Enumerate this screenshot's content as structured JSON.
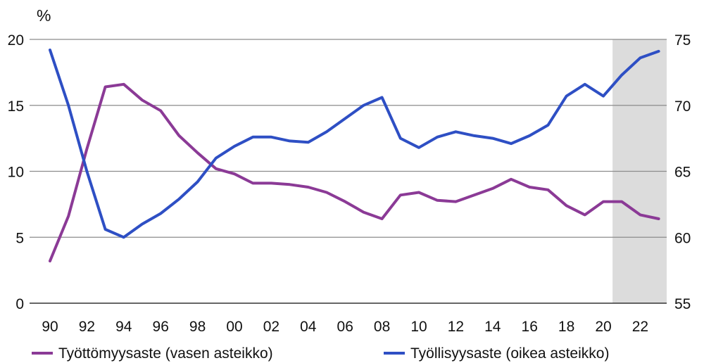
{
  "chart_data": {
    "type": "line",
    "title": "",
    "y_unit_left": "%",
    "x_categories": [
      "90",
      "91",
      "92",
      "93",
      "94",
      "95",
      "96",
      "97",
      "98",
      "99",
      "00",
      "01",
      "02",
      "03",
      "04",
      "05",
      "06",
      "07",
      "08",
      "09",
      "10",
      "11",
      "12",
      "13",
      "14",
      "15",
      "16",
      "17",
      "18",
      "19",
      "20",
      "21",
      "22",
      "23"
    ],
    "x_tick_labels": [
      "90",
      "92",
      "94",
      "96",
      "98",
      "00",
      "02",
      "04",
      "06",
      "08",
      "10",
      "12",
      "14",
      "16",
      "18",
      "20",
      "22"
    ],
    "y_left": {
      "min": 0,
      "max": 20,
      "ticks": [
        "0",
        "5",
        "10",
        "15",
        "20"
      ]
    },
    "y_right": {
      "min": 55,
      "max": 75,
      "ticks": [
        "55",
        "60",
        "65",
        "70",
        "75"
      ]
    },
    "grid": true,
    "forecast_band": {
      "from": "21",
      "to": "23"
    },
    "legend_position": "bottom",
    "series": [
      {
        "name": "Työttömyysaste (vasen asteikko)",
        "axis": "left",
        "color": "#8B3A96",
        "values": [
          3.2,
          6.6,
          11.7,
          16.4,
          16.6,
          15.4,
          14.6,
          12.7,
          11.4,
          10.2,
          9.8,
          9.1,
          9.1,
          9.0,
          8.8,
          8.4,
          7.7,
          6.9,
          6.4,
          8.2,
          8.4,
          7.8,
          7.7,
          8.2,
          8.7,
          9.4,
          8.8,
          8.6,
          7.4,
          6.7,
          7.7,
          7.7,
          6.7,
          6.4
        ]
      },
      {
        "name": "Työllisyysaste (oikea asteikko)",
        "axis": "right",
        "color": "#2E4FC4",
        "values": [
          74.2,
          70.0,
          65.0,
          60.6,
          60.0,
          61.0,
          61.8,
          62.9,
          64.2,
          66.0,
          66.9,
          67.6,
          67.6,
          67.3,
          67.2,
          68.0,
          69.0,
          70.0,
          70.6,
          67.5,
          66.8,
          67.6,
          68.0,
          67.7,
          67.5,
          67.1,
          67.7,
          68.5,
          70.7,
          71.6,
          70.7,
          72.3,
          73.6,
          74.1
        ]
      }
    ]
  }
}
